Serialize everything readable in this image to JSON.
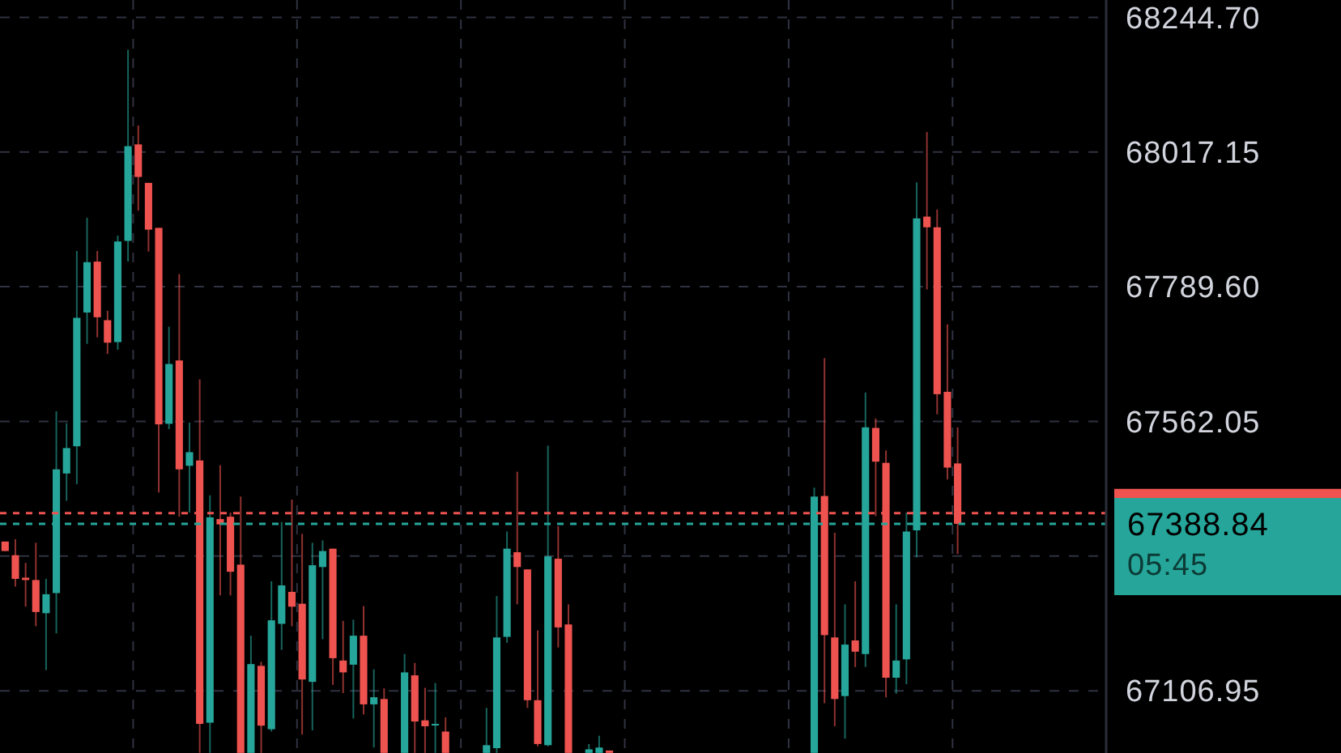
{
  "chart_data": {
    "type": "candlestick",
    "categories": [
      null,
      null,
      null,
      null,
      null,
      null,
      null,
      null,
      null,
      null,
      null,
      null,
      null,
      null,
      null,
      null,
      null,
      null,
      null,
      null,
      null,
      null,
      null,
      null,
      null,
      null,
      null,
      null,
      null,
      null,
      null,
      null,
      null,
      null,
      null,
      null,
      null,
      null,
      null,
      null,
      null,
      null,
      null,
      null,
      null,
      null,
      null,
      null,
      null,
      null,
      null,
      null,
      null,
      null,
      null,
      null,
      null,
      null,
      null,
      null,
      null,
      null,
      null,
      null,
      null,
      null,
      null,
      null,
      null,
      null,
      null,
      null,
      null,
      null,
      null,
      null,
      null,
      null,
      null,
      null,
      null,
      null,
      null,
      null,
      null,
      null,
      null,
      null,
      null,
      null,
      null,
      null,
      null,
      null,
      null,
      null,
      null,
      null,
      null,
      null,
      null,
      null,
      null,
      null,
      null,
      null,
      null,
      null
    ],
    "ohlc": [
      [
        67359,
        67359,
        67343,
        67343
      ],
      [
        67336,
        67363,
        67283,
        67296
      ],
      [
        67298,
        67323,
        67249,
        67294
      ],
      [
        67294,
        67357,
        67216,
        67240
      ],
      [
        67238,
        67296,
        67142,
        67270
      ],
      [
        67272,
        67579,
        67204,
        67481
      ],
      [
        67474,
        67559,
        67428,
        67517
      ],
      [
        67520,
        67850,
        67456,
        67737
      ],
      [
        67746,
        67906,
        67693,
        67831
      ],
      [
        67832,
        67850,
        67704,
        67738
      ],
      [
        67733,
        67749,
        67676,
        67695
      ],
      [
        67696,
        67876,
        67683,
        67866
      ],
      [
        67867,
        68190,
        67832,
        68027
      ],
      [
        68030,
        68062,
        67918,
        67975
      ],
      [
        67965,
        67965,
        67849,
        67886
      ],
      [
        67889,
        67889,
        67442,
        67557
      ],
      [
        67558,
        67722,
        67549,
        67659
      ],
      [
        67665,
        67811,
        67401,
        67481
      ],
      [
        67487,
        67560,
        67408,
        67510
      ],
      [
        67496,
        67633,
        67002,
        67051
      ],
      [
        67053,
        67437,
        67002,
        67400
      ],
      [
        67397,
        67488,
        67268,
        67388
      ],
      [
        67401,
        67408,
        67268,
        67308
      ],
      [
        67320,
        67435,
        67002,
        67002
      ],
      [
        67002,
        67200,
        67002,
        67152
      ],
      [
        67149,
        67156,
        67002,
        67048
      ],
      [
        67042,
        67292,
        67038,
        67226
      ],
      [
        67220,
        67392,
        67176,
        67285
      ],
      [
        67274,
        67430,
        67216,
        67249
      ],
      [
        67254,
        67372,
        67033,
        67126
      ],
      [
        67122,
        67357,
        67040,
        67319
      ],
      [
        67316,
        67361,
        67194,
        67343
      ],
      [
        67347,
        67347,
        67117,
        67162
      ],
      [
        67158,
        67225,
        67103,
        67138
      ],
      [
        67151,
        67227,
        67060,
        67200
      ],
      [
        67200,
        67250,
        67067,
        67084
      ],
      [
        67084,
        67143,
        67011,
        67096
      ],
      [
        67093,
        67111,
        67002,
        67002
      ],
      null,
      [
        67002,
        67169,
        67002,
        67138
      ],
      [
        67133,
        67154,
        67002,
        67055
      ],
      [
        67057,
        67112,
        67002,
        67047
      ],
      [
        67049,
        67120,
        67002,
        67051
      ],
      [
        67038,
        67062,
        67002,
        67002
      ],
      null,
      null,
      null,
      [
        67002,
        67078,
        67002,
        67015
      ],
      [
        67010,
        67267,
        67002,
        67197
      ],
      [
        67198,
        67376,
        67188,
        67347
      ],
      [
        67341,
        67477,
        67253,
        67316
      ],
      [
        67312,
        67312,
        67078,
        67091
      ],
      [
        67091,
        67209,
        67013,
        67017
      ],
      [
        67015,
        67521,
        67013,
        67334
      ],
      [
        67330,
        67385,
        67180,
        67214
      ],
      [
        67219,
        67253,
        67002,
        67002
      ],
      null,
      [
        67002,
        67017,
        67002,
        67008
      ],
      [
        67002,
        67031,
        67002,
        67011
      ],
      [
        67006,
        67006,
        67002,
        67002
      ],
      null,
      null,
      null,
      null,
      null,
      null,
      null,
      null,
      null,
      null,
      null,
      null,
      null,
      null,
      null,
      null,
      null,
      null,
      null,
      [
        67002,
        67450,
        67002,
        67435
      ],
      [
        67436,
        67669,
        67086,
        67201
      ],
      [
        67197,
        67374,
        67047,
        67093
      ],
      [
        67098,
        67253,
        67026,
        67185
      ],
      [
        67192,
        67292,
        67147,
        67173
      ],
      [
        67169,
        67611,
        67147,
        67552
      ],
      [
        67551,
        67567,
        67402,
        67494
      ],
      [
        67492,
        67513,
        67096,
        67129
      ],
      [
        67129,
        67253,
        67102,
        67158
      ],
      [
        67160,
        67408,
        67118,
        67376
      ],
      [
        67378,
        67966,
        67332,
        67905
      ],
      [
        67908,
        68051,
        67785,
        67890
      ],
      [
        67890,
        67920,
        67574,
        67608
      ],
      [
        67612,
        67726,
        67464,
        67484
      ],
      [
        67491,
        67552,
        67338,
        67389
      ],
      null,
      null,
      null,
      null,
      null,
      null,
      null,
      null,
      null,
      null,
      null,
      null,
      null,
      null
    ],
    "colors": [
      "#ef5350",
      "#ef5350",
      "#ef5350",
      "#ef5350",
      "#26a69a",
      "#26a69a",
      "#26a69a",
      "#26a69a",
      "#26a69a",
      "#ef5350",
      "#ef5350",
      "#26a69a",
      "#26a69a",
      "#ef5350",
      "#ef5350",
      "#ef5350",
      "#26a69a",
      "#ef5350",
      "#26a69a",
      "#ef5350",
      "#26a69a",
      "#ef5350",
      "#ef5350",
      "#ef5350",
      "#26a69a",
      "#ef5350",
      "#26a69a",
      "#26a69a",
      "#ef5350",
      "#ef5350",
      "#26a69a",
      "#26a69a",
      "#ef5350",
      "#ef5350",
      "#26a69a",
      "#ef5350",
      "#26a69a",
      "#ef5350",
      null,
      "#26a69a",
      "#ef5350",
      "#ef5350",
      "#26a69a",
      "#ef5350",
      null,
      null,
      null,
      "#26a69a",
      "#26a69a",
      "#26a69a",
      "#ef5350",
      "#ef5350",
      "#ef5350",
      "#26a69a",
      "#ef5350",
      "#ef5350",
      null,
      "#26a69a",
      "#26a69a",
      "#ef5350",
      null,
      null,
      null,
      null,
      null,
      null,
      null,
      null,
      null,
      null,
      null,
      null,
      null,
      null,
      null,
      null,
      null,
      null,
      null,
      "#26a69a",
      "#ef5350",
      "#ef5350",
      "#26a69a",
      "#ef5350",
      "#26a69a",
      "#ef5350",
      "#ef5350",
      "#26a69a",
      "#26a69a",
      "#26a69a",
      "#ef5350",
      "#ef5350",
      "#ef5350",
      "#ef5350",
      null,
      null,
      null,
      null,
      null,
      null,
      null,
      null,
      null,
      null,
      null,
      null,
      null,
      null
    ],
    "ylim": [
      67001.8,
      68246.6
    ],
    "yticks": [
      {
        "value": 68244.7,
        "label": "68244.70"
      },
      {
        "value": 68017.15,
        "label": "68017.15"
      },
      {
        "value": 67789.6,
        "label": "67789.60"
      },
      {
        "value": 67562.05,
        "label": "67562.05"
      },
      {
        "value": 67334.5,
        "label": null
      },
      {
        "value": 67106.95,
        "label": "67106.95"
      }
    ],
    "grid": true,
    "ref_lines": [
      {
        "axis": "y",
        "value": 67407,
        "color": "#ef5350",
        "line_style": "dashed"
      },
      {
        "axis": "y",
        "value": 67388.84,
        "label": "67388.84",
        "color": "#26a69a",
        "line_style": "dashed"
      }
    ],
    "annotations": [
      "05:45"
    ]
  }
}
